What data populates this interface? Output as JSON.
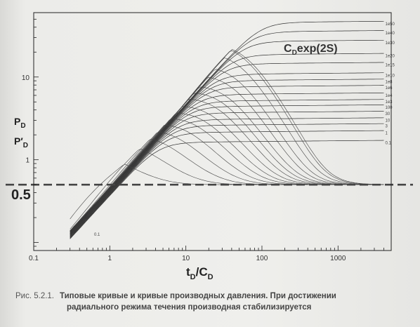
{
  "chart_data": {
    "type": "line",
    "xscale": "log",
    "yscale": "log",
    "xlim": [
      0.1,
      5000
    ],
    "ylim": [
      0.08,
      60
    ],
    "grid": false,
    "xticks": [
      "0.1",
      "1",
      "10",
      "100",
      "1000"
    ],
    "yticks": [
      "1",
      "10"
    ],
    "y_ref_label": "0.5",
    "y_ref_value": 0.5,
    "ylabel_top": "P",
    "ylabel_top_sub": "D",
    "ylabel_bottom": "P′",
    "ylabel_bottom_sub": "D",
    "xlabel_main": "t",
    "xlabel_sub1": "D",
    "xlabel_mid": "/C",
    "xlabel_sub2": "D",
    "annotation_main": "C",
    "annotation_sub": "D",
    "annotation_rest": "exp(2S)",
    "series": [
      {
        "name": "1e50",
        "plateau": 44.0
      },
      {
        "name": "1e40",
        "plateau": 34.0
      },
      {
        "name": "1e30",
        "plateau": 26.0
      },
      {
        "name": "1e20",
        "plateau": 18.0
      },
      {
        "name": "1e15",
        "plateau": 14.0
      },
      {
        "name": "1e10",
        "plateau": 10.5
      },
      {
        "name": "1e8",
        "plateau": 8.8
      },
      {
        "name": "1e6",
        "plateau": 7.4
      },
      {
        "name": "1e4",
        "plateau": 6.0
      },
      {
        "name": "1e3",
        "plateau": 5.0
      },
      {
        "name": "100",
        "plateau": 4.3
      },
      {
        "name": "30",
        "plateau": 3.6
      },
      {
        "name": "10",
        "plateau": 3.0
      },
      {
        "name": "3",
        "plateau": 2.55
      },
      {
        "name": "1",
        "plateau": 2.1
      },
      {
        "name": "0.1",
        "plateau": 1.6
      }
    ],
    "derivative_reference": 0.5
  },
  "caption": {
    "number": "Рис. 5.2.1.",
    "line1": "Типовые кривые и кривые производных давления. При достижении",
    "line2": "радиального режима течения производная стабилизируется"
  }
}
